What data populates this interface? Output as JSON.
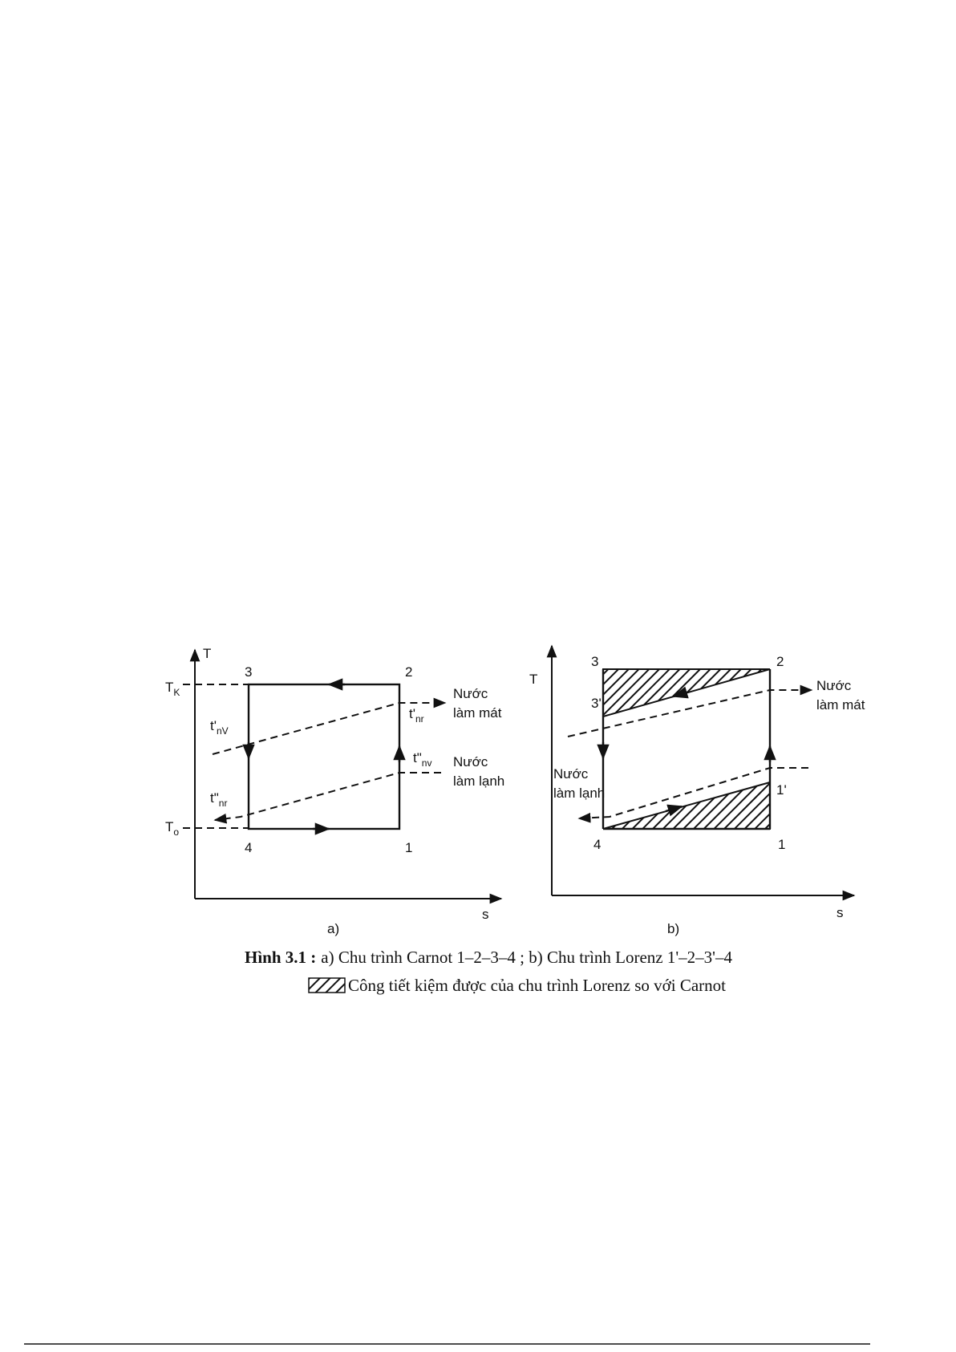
{
  "figure": {
    "panel_a": {
      "axis_y": "T",
      "axis_x": "s",
      "tag": "a)",
      "tk": {
        "main": "T",
        "sub": "K"
      },
      "to": {
        "main": "T",
        "sub": "o"
      },
      "points": [
        "1",
        "2",
        "3",
        "4"
      ],
      "t_nv_in": {
        "main": "t'",
        "sub": "nV"
      },
      "t_nr_out": {
        "main": "t'",
        "sub": "nr"
      },
      "t_nv_out": {
        "main": "t\"",
        "sub": "nv"
      },
      "t_nr_in": {
        "main": "t\"",
        "sub": "nr"
      },
      "water_cool": [
        "Nước",
        "làm mát"
      ],
      "water_chill": [
        "Nước",
        "làm lạnh"
      ]
    },
    "panel_b": {
      "axis_y": "T",
      "axis_x": "s",
      "tag": "b)",
      "points": [
        "1",
        "2",
        "3",
        "4",
        "3'",
        "1'"
      ],
      "water_cool": [
        "Nước",
        "làm mát"
      ],
      "water_chill": [
        "Nước",
        "làm lạnh"
      ]
    },
    "caption": {
      "label": "Hình 3.1 :",
      "text": "a) Chu trình Carnot 1–2–3–4 ; b) Chu trình Lorenz 1'–2–3'–4",
      "legend": "Công tiết kiệm được của chu trình Lorenz so với Carnot"
    }
  }
}
